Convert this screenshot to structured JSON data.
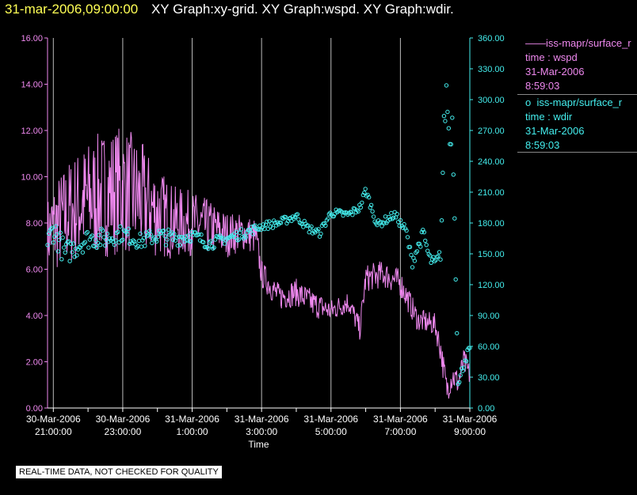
{
  "header": {
    "time": "31-mar-2006,09:00:00",
    "graphs": "XY Graph:xy-grid.  XY Graph:wspd.  XY Graph:wdir."
  },
  "legend": [
    {
      "symbol": "——",
      "name": "iss-mapr/surface_r",
      "line2": "time : wspd",
      "line3": "31-Mar-2006",
      "line4": "8:59:03",
      "color": "#ee88ee"
    },
    {
      "symbol": "o",
      "name": "iss-mapr/surface_r",
      "line2": "time : wdir",
      "line3": "31-Mar-2006",
      "line4": "8:59:03",
      "color": "#44eeee"
    }
  ],
  "disclaimer": "REAL-TIME DATA, NOT CHECKED FOR QUALITY",
  "chart_data": {
    "type": "line",
    "xlabel": "Time",
    "x_ticks": [
      {
        "h": 21,
        "line1": "30-Mar-2006",
        "line2": "21:00:00"
      },
      {
        "h": 23,
        "line1": "30-Mar-2006",
        "line2": "23:00:00"
      },
      {
        "h": 25,
        "line1": "31-Mar-2006",
        "line2": "1:00:00"
      },
      {
        "h": 27,
        "line1": "31-Mar-2006",
        "line2": "3:00:00"
      },
      {
        "h": 29,
        "line1": "31-Mar-2006",
        "line2": "5:00:00"
      },
      {
        "h": 31,
        "line1": "31-Mar-2006",
        "line2": "7:00:00"
      },
      {
        "h": 33,
        "line1": "31-Mar-2006",
        "line2": "9:00:00"
      }
    ],
    "xlim": [
      "30-Mar-2006 20:50",
      "31-Mar-2006 09:00"
    ],
    "left_axis": {
      "ylim": [
        0,
        16
      ],
      "ticks": [
        "0.00",
        "2.00",
        "4.00",
        "6.00",
        "8.00",
        "10.00",
        "12.00",
        "14.00",
        "16.00"
      ],
      "color": "#ee88ee"
    },
    "right_axis": {
      "ylim": [
        0,
        360
      ],
      "ticks": [
        "0.00",
        "30.00",
        "60.00",
        "90.00",
        "120.00",
        "150.00",
        "180.00",
        "210.00",
        "240.00",
        "270.00",
        "300.00",
        "330.00",
        "360.00"
      ],
      "color": "#44eeee"
    },
    "grid": "vertical",
    "series": [
      {
        "name": "wspd",
        "axis": "left",
        "style": "line",
        "color": "#ee88ee",
        "x": [
          "30-Mar-2006 20:50",
          "30-Mar-2006 21:00",
          "30-Mar-2006 21:30",
          "30-Mar-2006 22:00",
          "30-Mar-2006 22:30",
          "30-Mar-2006 23:00",
          "30-Mar-2006 23:30",
          "31-Mar-2006 00:00",
          "31-Mar-2006 00:30",
          "31-Mar-2006 01:00",
          "31-Mar-2006 01:30",
          "31-Mar-2006 02:00",
          "31-Mar-2006 02:30",
          "31-Mar-2006 02:50",
          "31-Mar-2006 03:00",
          "31-Mar-2006 03:30",
          "31-Mar-2006 04:00",
          "31-Mar-2006 04:30",
          "31-Mar-2006 05:00",
          "31-Mar-2006 05:30",
          "31-Mar-2006 05:50",
          "31-Mar-2006 06:00",
          "31-Mar-2006 06:30",
          "31-Mar-2006 07:00",
          "31-Mar-2006 07:30",
          "31-Mar-2006 08:00",
          "31-Mar-2006 08:10",
          "31-Mar-2006 08:20",
          "31-Mar-2006 08:30",
          "31-Mar-2006 08:40",
          "31-Mar-2006 08:50",
          "31-Mar-2006 09:00"
        ],
        "values": [
          7.5,
          7.8,
          8.5,
          9.0,
          9.3,
          9.5,
          9.0,
          8.5,
          8.0,
          8.0,
          7.8,
          7.5,
          7.6,
          7.4,
          5.8,
          4.8,
          5.0,
          4.5,
          4.2,
          4.6,
          3.4,
          5.6,
          5.8,
          5.4,
          3.8,
          3.6,
          2.5,
          0.8,
          1.4,
          1.1,
          2.0,
          1.4
        ],
        "amplitude": [
          1.6,
          2.0,
          2.4,
          2.6,
          2.8,
          2.8,
          2.6,
          2.0,
          1.6,
          1.4,
          1.2,
          1.0,
          0.8,
          0.8,
          0.6,
          0.6,
          0.6,
          0.6,
          0.5,
          0.5,
          0.5,
          0.6,
          0.6,
          0.6,
          0.5,
          0.5,
          0.6,
          0.6,
          0.6,
          0.6,
          0.6,
          0.5
        ]
      },
      {
        "name": "wdir",
        "axis": "right",
        "style": "circle",
        "color": "#44eeee",
        "x": [
          "30-Mar-2006 20:50",
          "30-Mar-2006 21:00",
          "30-Mar-2006 21:20",
          "30-Mar-2006 22:00",
          "30-Mar-2006 22:30",
          "30-Mar-2006 23:00",
          "30-Mar-2006 23:30",
          "31-Mar-2006 00:00",
          "31-Mar-2006 00:30",
          "31-Mar-2006 01:00",
          "31-Mar-2006 01:30",
          "31-Mar-2006 02:00",
          "31-Mar-2006 02:30",
          "31-Mar-2006 03:00",
          "31-Mar-2006 03:30",
          "31-Mar-2006 04:00",
          "31-Mar-2006 04:20",
          "31-Mar-2006 04:40",
          "31-Mar-2006 05:00",
          "31-Mar-2006 05:30",
          "31-Mar-2006 05:50",
          "31-Mar-2006 06:00",
          "31-Mar-2006 06:20",
          "31-Mar-2006 06:50",
          "31-Mar-2006 07:10",
          "31-Mar-2006 07:20",
          "31-Mar-2006 07:40",
          "31-Mar-2006 07:50",
          "31-Mar-2006 08:00",
          "31-Mar-2006 08:10",
          "31-Mar-2006 08:15",
          "31-Mar-2006 08:20",
          "31-Mar-2006 08:25",
          "31-Mar-2006 08:30",
          "31-Mar-2006 08:40",
          "31-Mar-2006 08:50",
          "31-Mar-2006 09:00"
        ],
        "values": [
          160,
          175,
          150,
          165,
          165,
          170,
          162,
          168,
          165,
          168,
          160,
          165,
          170,
          177,
          180,
          187,
          175,
          170,
          190,
          188,
          195,
          212,
          178,
          188,
          172,
          142,
          170,
          145,
          140,
          150,
          270,
          310,
          255,
          280,
          20,
          45,
          58
        ],
        "jitter": [
          12,
          14,
          12,
          10,
          10,
          8,
          8,
          8,
          8,
          6,
          6,
          5,
          5,
          4,
          4,
          4,
          4,
          4,
          4,
          4,
          4,
          4,
          4,
          4,
          5,
          6,
          6,
          6,
          6,
          6,
          12,
          18,
          10,
          14,
          6,
          6,
          4
        ]
      }
    ]
  }
}
